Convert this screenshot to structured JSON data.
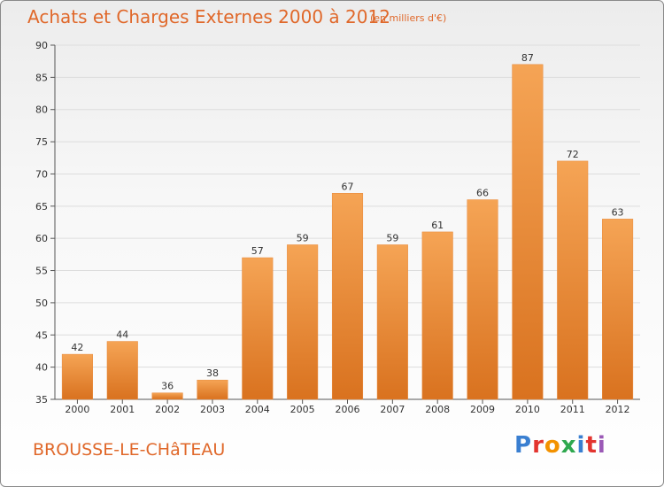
{
  "header": {
    "title": "Achats et Charges Externes 2000 à 2012",
    "unit": "(en milliers d'€)"
  },
  "footer": {
    "commune": "BROUSSE-LE-CHâTEAU",
    "brand": "Proxiti",
    "brand_colors": [
      "#3a7fd1",
      "#e3342f",
      "#f39200",
      "#2fa84f",
      "#3a7fd1",
      "#e3342f",
      "#9b59b6"
    ]
  },
  "chart_data": {
    "type": "bar",
    "title": "Achats et Charges Externes 2000 à 2012",
    "subtitle": "(en milliers d'€)",
    "categories": [
      "2000",
      "2001",
      "2002",
      "2003",
      "2004",
      "2005",
      "2006",
      "2007",
      "2008",
      "2009",
      "2010",
      "2011",
      "2012"
    ],
    "values": [
      42,
      44,
      36,
      38,
      57,
      59,
      67,
      59,
      61,
      66,
      87,
      72,
      63
    ],
    "ylim": [
      35,
      90
    ],
    "yticks": [
      35,
      40,
      45,
      50,
      55,
      60,
      65,
      70,
      75,
      80,
      85,
      90
    ],
    "grid": true,
    "bar_color_top": "#f5a455",
    "bar_color_bottom": "#d9721f",
    "grid_color": "#dddddd"
  }
}
